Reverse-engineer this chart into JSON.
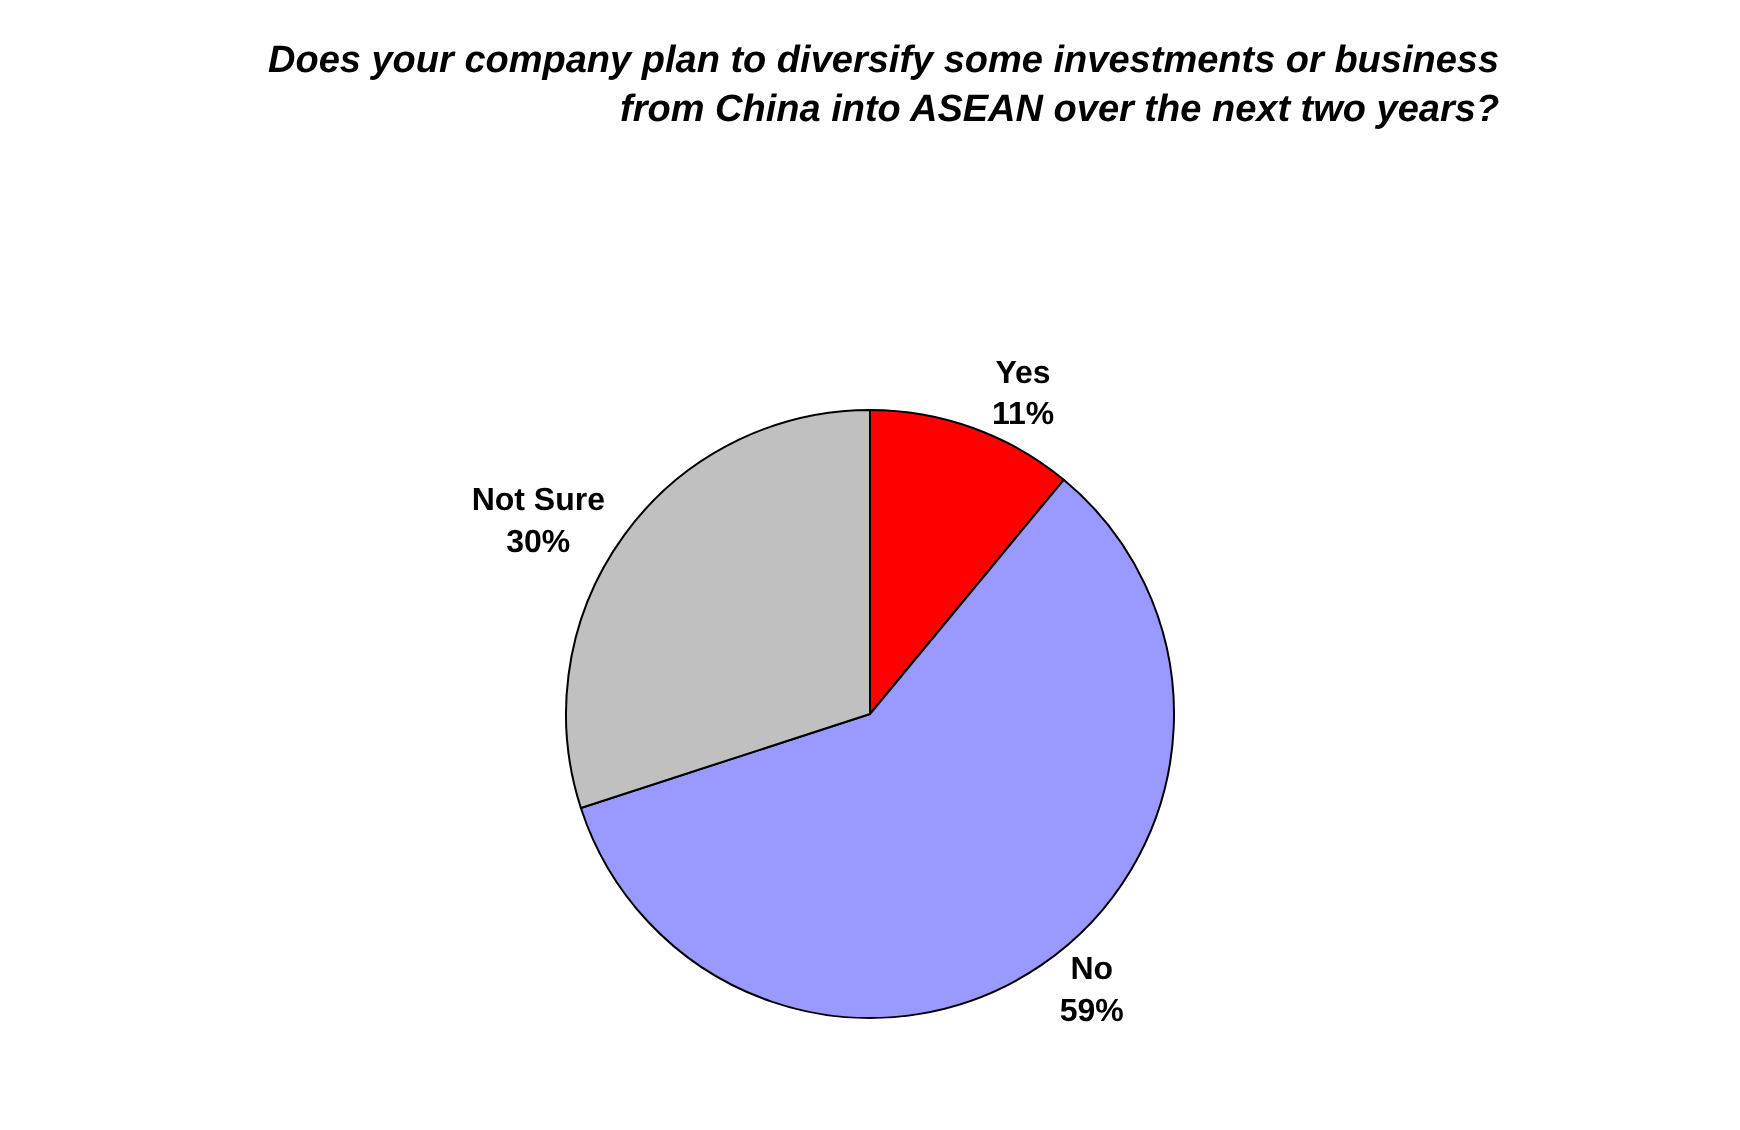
{
  "chart_data": {
    "type": "pie",
    "title": "Does your company plan to diversify some investments or business from China into ASEAN over the next two years?",
    "categories": [
      "Yes",
      "No",
      "Not Sure"
    ],
    "values": [
      11,
      59,
      30
    ],
    "value_labels": [
      "11%",
      "59%",
      "30%"
    ],
    "colors": [
      "#ff0000",
      "#9999ff",
      "#c0c0c0"
    ],
    "legend": false
  }
}
